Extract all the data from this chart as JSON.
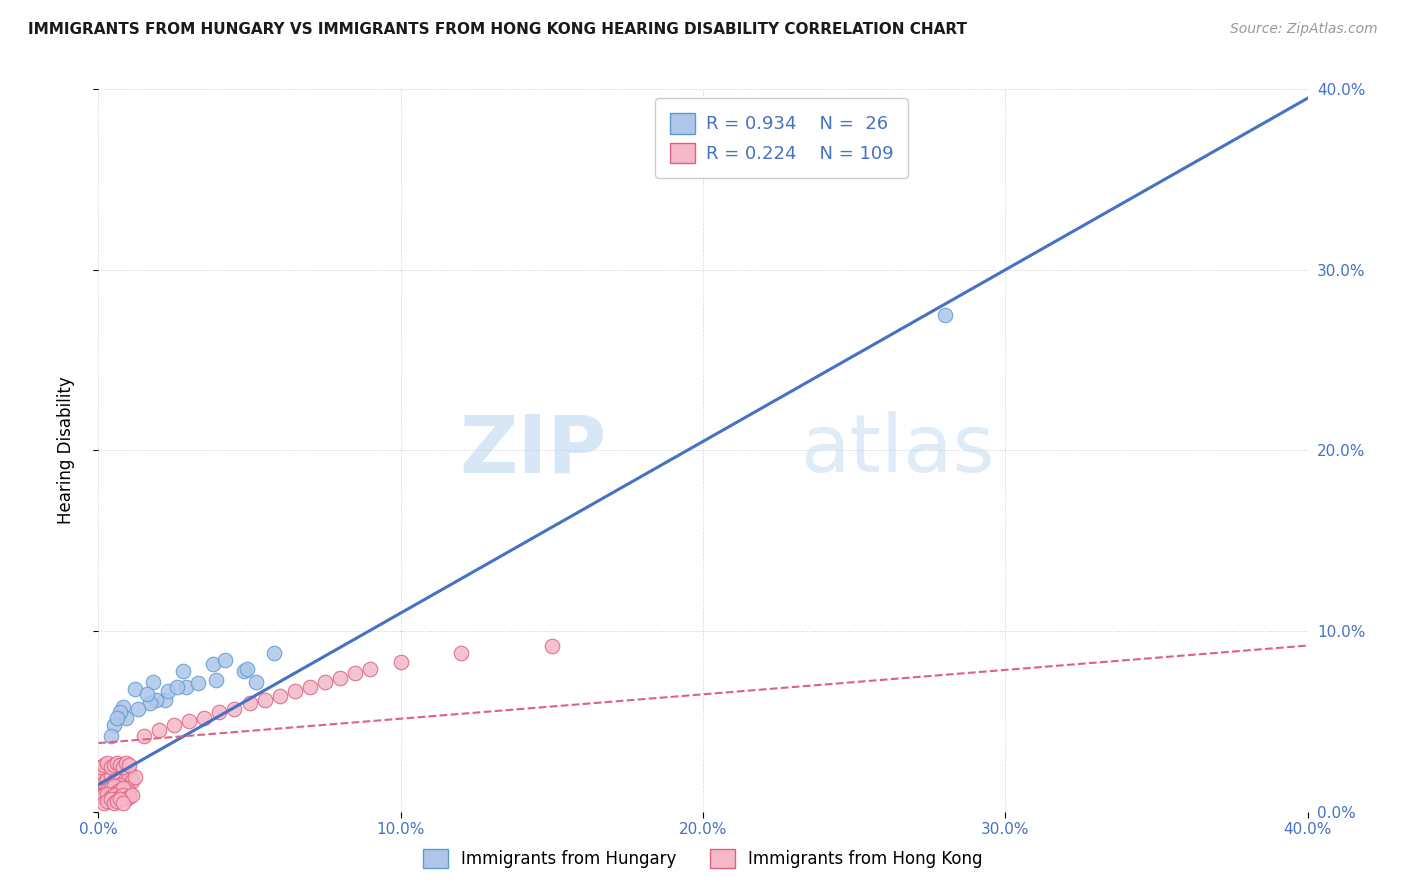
{
  "title": "IMMIGRANTS FROM HUNGARY VS IMMIGRANTS FROM HONG KONG HEARING DISABILITY CORRELATION CHART",
  "source_text": "Source: ZipAtlas.com",
  "ylabel": "Hearing Disability",
  "xlim": [
    0.0,
    0.4
  ],
  "ylim": [
    0.0,
    0.4
  ],
  "xtick_vals": [
    0.0,
    0.1,
    0.2,
    0.3,
    0.4
  ],
  "ytick_vals": [
    0.0,
    0.1,
    0.2,
    0.3,
    0.4
  ],
  "background_color": "#ffffff",
  "grid_color": "#cccccc",
  "hungary_color": "#aec6e8",
  "hungary_edge_color": "#5b9bd5",
  "hong_kong_color": "#f4b8c8",
  "hong_kong_edge_color": "#e06080",
  "hungary_R": 0.934,
  "hungary_N": 26,
  "hong_kong_R": 0.224,
  "hong_kong_N": 109,
  "watermark_zip": "ZIP",
  "watermark_atlas": "atlas",
  "hungary_line_color": "#4472c4",
  "hong_kong_line_color": "#e06080",
  "legend_R_color": "#4472c4",
  "hungary_line_x0": 0.0,
  "hungary_line_y0": 0.015,
  "hungary_line_x1": 0.4,
  "hungary_line_y1": 0.395,
  "hong_kong_line_x0": 0.0,
  "hong_kong_line_y0": 0.038,
  "hong_kong_line_x1": 0.4,
  "hong_kong_line_y1": 0.092,
  "hungary_scatter_x": [
    0.008,
    0.012,
    0.018,
    0.022,
    0.028,
    0.005,
    0.038,
    0.048,
    0.052,
    0.058,
    0.009,
    0.019,
    0.029,
    0.039,
    0.049,
    0.007,
    0.017,
    0.013,
    0.023,
    0.033,
    0.28,
    0.006,
    0.004,
    0.016,
    0.026,
    0.042
  ],
  "hungary_scatter_y": [
    0.058,
    0.068,
    0.072,
    0.062,
    0.078,
    0.048,
    0.082,
    0.078,
    0.072,
    0.088,
    0.052,
    0.062,
    0.069,
    0.073,
    0.079,
    0.055,
    0.06,
    0.057,
    0.067,
    0.071,
    0.275,
    0.052,
    0.042,
    0.065,
    0.069,
    0.084
  ],
  "hong_kong_scatter_x": [
    0.001,
    0.002,
    0.003,
    0.004,
    0.005,
    0.001,
    0.002,
    0.003,
    0.004,
    0.005,
    0.006,
    0.007,
    0.008,
    0.003,
    0.004,
    0.005,
    0.006,
    0.007,
    0.008,
    0.009,
    0.002,
    0.003,
    0.004,
    0.005,
    0.006,
    0.007,
    0.008,
    0.009,
    0.01,
    0.001,
    0.002,
    0.003,
    0.004,
    0.005,
    0.006,
    0.001,
    0.002,
    0.003,
    0.004,
    0.005,
    0.006,
    0.007,
    0.008,
    0.009,
    0.01,
    0.011,
    0.012,
    0.002,
    0.003,
    0.004,
    0.005,
    0.006,
    0.007,
    0.008,
    0.009,
    0.01,
    0.003,
    0.004,
    0.005,
    0.006,
    0.007,
    0.008,
    0.001,
    0.002,
    0.003,
    0.004,
    0.005,
    0.006,
    0.007,
    0.008,
    0.009,
    0.01,
    0.011,
    0.002,
    0.003,
    0.004,
    0.005,
    0.006,
    0.007,
    0.008,
    0.001,
    0.002,
    0.003,
    0.004,
    0.005,
    0.006,
    0.007,
    0.008,
    0.009,
    0.01,
    0.015,
    0.02,
    0.025,
    0.03,
    0.035,
    0.04,
    0.045,
    0.05,
    0.055,
    0.06,
    0.065,
    0.07,
    0.075,
    0.08,
    0.085,
    0.09,
    0.1,
    0.12,
    0.15
  ],
  "hong_kong_scatter_y": [
    0.02,
    0.018,
    0.022,
    0.019,
    0.021,
    0.025,
    0.023,
    0.02,
    0.018,
    0.022,
    0.024,
    0.021,
    0.019,
    0.023,
    0.02,
    0.022,
    0.021,
    0.019,
    0.023,
    0.02,
    0.024,
    0.022,
    0.02,
    0.023,
    0.021,
    0.019,
    0.023,
    0.02,
    0.022,
    0.015,
    0.016,
    0.017,
    0.018,
    0.019,
    0.02,
    0.021,
    0.016,
    0.018,
    0.02,
    0.017,
    0.019,
    0.021,
    0.016,
    0.018,
    0.02,
    0.017,
    0.019,
    0.01,
    0.011,
    0.012,
    0.013,
    0.014,
    0.015,
    0.012,
    0.013,
    0.011,
    0.012,
    0.013,
    0.014,
    0.011,
    0.012,
    0.013,
    0.008,
    0.009,
    0.01,
    0.008,
    0.009,
    0.007,
    0.008,
    0.009,
    0.007,
    0.008,
    0.009,
    0.005,
    0.006,
    0.007,
    0.005,
    0.006,
    0.007,
    0.005,
    0.025,
    0.026,
    0.027,
    0.025,
    0.026,
    0.027,
    0.026,
    0.025,
    0.027,
    0.026,
    0.042,
    0.045,
    0.048,
    0.05,
    0.052,
    0.055,
    0.057,
    0.06,
    0.062,
    0.064,
    0.067,
    0.069,
    0.072,
    0.074,
    0.077,
    0.079,
    0.083,
    0.088,
    0.092
  ]
}
